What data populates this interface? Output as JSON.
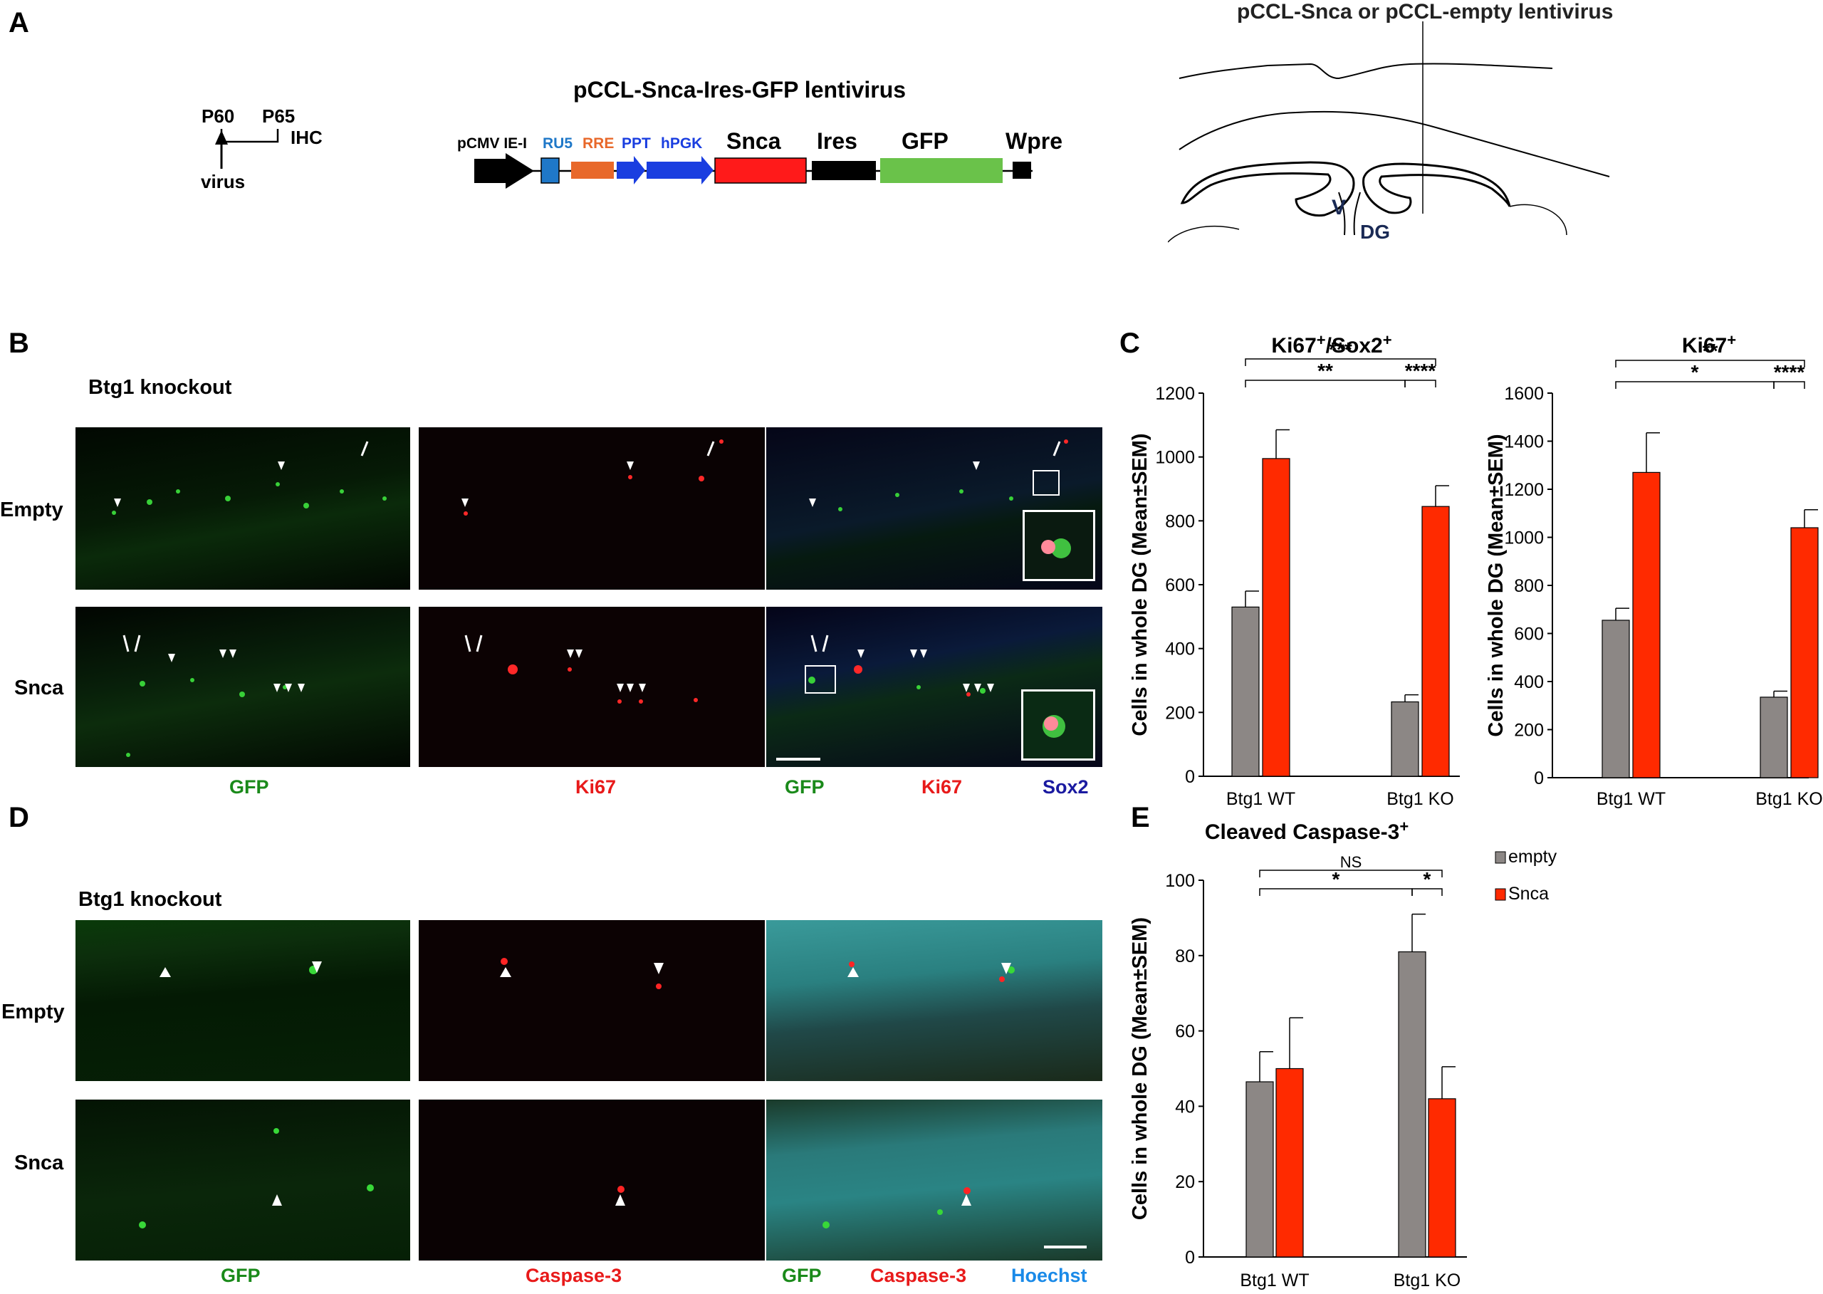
{
  "panels": {
    "A": "A",
    "B": "B",
    "C": "C",
    "D": "D",
    "E": "E"
  },
  "timeline": {
    "p60": "P60",
    "p65": "P65",
    "ihc": "IHC",
    "virus": "virus"
  },
  "construct": {
    "title": "pCCL-Snca-Ires-GFP lentivirus",
    "labels": {
      "pcmv": "pCMV IE-I",
      "ru5": "RU5",
      "rre": "RRE",
      "ppt": "PPT",
      "hpgk": "hPGK",
      "snca": "Snca",
      "ires": "Ires",
      "gfp": "GFP",
      "wpre": "Wpre"
    },
    "colors": {
      "pcmv": "#000000",
      "ru5": "#1f78c8",
      "rre": "#e8682a",
      "ppt": "#1a3ee0",
      "hpgk": "#1a3ee0",
      "snca": "#ff1a1a",
      "ires": "#000000",
      "gfp": "#6ac24a",
      "wpre": "#000000"
    }
  },
  "brain": {
    "title": "pCCL-Snca or pCCL-empty lentivirus",
    "v": "V",
    "dg": "DG"
  },
  "panelB": {
    "header": "Btg1 knockout",
    "rows": [
      "Empty",
      "Snca"
    ],
    "captions": {
      "gfp": "GFP",
      "ki67": "Ki67",
      "gfp2": "GFP",
      "ki67b": "Ki67",
      "sox2": "Sox2"
    }
  },
  "panelD": {
    "header": "Btg1 knockout",
    "rows": [
      "Empty",
      "Snca"
    ],
    "captions": {
      "gfp": "GFP",
      "casp": "Caspase-3",
      "gfp2": "GFP",
      "casp2": "Caspase-3",
      "hoechst": "Hoechst"
    }
  },
  "colors": {
    "empty": "#8c8785",
    "snca": "#ff2a00",
    "gfp": "#1a9a1a",
    "red": "#e82020",
    "blue": "#1a1aa0",
    "cyan": "#1a8ae8"
  },
  "chart_data": [
    {
      "type": "bar",
      "title": "Ki67+/Sox2+",
      "ylabel": "Cells in whole DG (Mean±SEM)",
      "categories": [
        "Btg1 WT",
        "Btg1 KO"
      ],
      "ylim": [
        0,
        1200
      ],
      "yticks": [
        0,
        200,
        400,
        600,
        800,
        1000,
        1200
      ],
      "series": [
        {
          "name": "empty",
          "values": [
            530,
            233
          ],
          "errors": [
            50,
            22
          ]
        },
        {
          "name": "Snca",
          "values": [
            995,
            845
          ],
          "errors": [
            90,
            65
          ]
        }
      ],
      "significance": [
        "***",
        "**",
        "****"
      ]
    },
    {
      "type": "bar",
      "title": "Ki67+",
      "ylabel": "Cells in whole DG (Mean±SEM)",
      "categories": [
        "Btg1 WT",
        "Btg1 KO"
      ],
      "ylim": [
        0,
        1600
      ],
      "yticks": [
        0,
        200,
        400,
        600,
        800,
        1000,
        1200,
        1400,
        1600
      ],
      "series": [
        {
          "name": "empty",
          "values": [
            655,
            335
          ],
          "errors": [
            50,
            25
          ]
        },
        {
          "name": "Snca",
          "values": [
            1270,
            1040
          ],
          "errors": [
            165,
            75
          ]
        }
      ],
      "significance": [
        "**",
        "*",
        "****"
      ]
    },
    {
      "type": "bar",
      "title": "Cleaved Caspase-3+",
      "ylabel": "Cells in whole DG (Mean±SEM)",
      "categories": [
        "Btg1 WT",
        "Btg1 KO"
      ],
      "ylim": [
        0,
        100
      ],
      "yticks": [
        0,
        20,
        40,
        60,
        80,
        100
      ],
      "series": [
        {
          "name": "empty",
          "values": [
            46.5,
            81
          ],
          "errors": [
            8,
            10
          ]
        },
        {
          "name": "Snca",
          "values": [
            50,
            42
          ],
          "errors": [
            13.5,
            8.5
          ]
        }
      ],
      "significance": [
        "NS",
        "*",
        "*"
      ],
      "legend": [
        "empty",
        "Snca"
      ]
    }
  ]
}
